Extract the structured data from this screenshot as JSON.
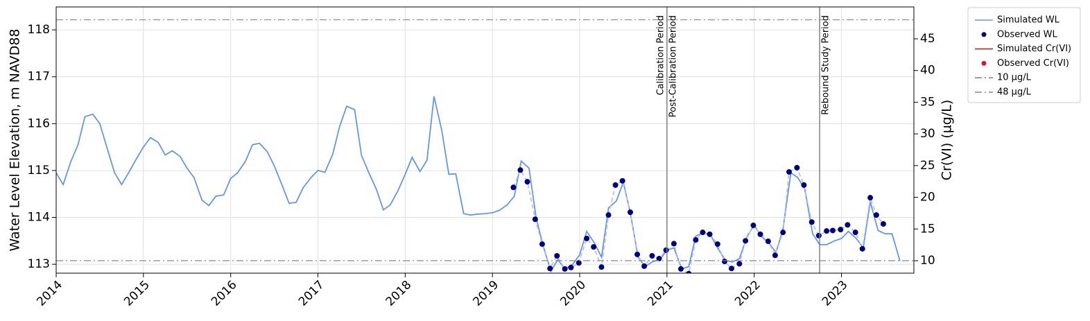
{
  "chart_data": {
    "type": "line",
    "ylabel": "Water Level Elevation, m NAVD88",
    "y2label": "Cr(VI) (µg/L)",
    "xlim": [
      2014,
      2023.83
    ],
    "xticks": [
      2014,
      2015,
      2016,
      2017,
      2018,
      2019,
      2020,
      2021,
      2022,
      2023
    ],
    "ylim": [
      112.81,
      118.49
    ],
    "yticks": [
      113,
      114,
      115,
      116,
      117,
      118
    ],
    "y2lim": [
      8.03,
      50.03
    ],
    "y2ticks": [
      10,
      15,
      20,
      25,
      30,
      35,
      40,
      45
    ],
    "grid": true,
    "legend": "outside-upper-right",
    "series": [
      {
        "name": "Simulated WL",
        "kind": "line",
        "color": "#6495ed",
        "x": [
          2014.0,
          2014.08,
          2014.17,
          2014.25,
          2014.33,
          2014.42,
          2014.5,
          2014.58,
          2014.67,
          2014.75,
          2014.83,
          2014.92,
          2015.0,
          2015.08,
          2015.17,
          2015.25,
          2015.33,
          2015.42,
          2015.5,
          2015.58,
          2015.67,
          2015.75,
          2015.83,
          2015.92,
          2016.0,
          2016.08,
          2016.17,
          2016.25,
          2016.33,
          2016.42,
          2016.5,
          2016.58,
          2016.67,
          2016.75,
          2016.83,
          2016.92,
          2017.0,
          2017.08,
          2017.17,
          2017.25,
          2017.33,
          2017.42,
          2017.5,
          2017.58,
          2017.67,
          2017.75,
          2017.83,
          2017.92,
          2018.0,
          2018.08,
          2018.17,
          2018.25,
          2018.33,
          2018.42,
          2018.5,
          2018.58,
          2018.67,
          2018.75,
          2018.83,
          2018.92,
          2019.0,
          2019.08,
          2019.17,
          2019.25,
          2019.33,
          2019.42,
          2019.5,
          2019.58,
          2019.67,
          2019.75,
          2019.83,
          2019.92,
          2020.0,
          2020.08,
          2020.17,
          2020.25,
          2020.33,
          2020.42,
          2020.5,
          2020.58,
          2020.67,
          2020.75,
          2020.83,
          2020.92,
          2021.0,
          2021.08,
          2021.17,
          2021.25,
          2021.33,
          2021.42,
          2021.5,
          2021.58,
          2021.67,
          2021.75,
          2021.83,
          2021.92,
          2022.0,
          2022.08,
          2022.17,
          2022.25,
          2022.33,
          2022.42,
          2022.5,
          2022.58,
          2022.67,
          2022.75,
          2022.83,
          2022.92,
          2023.0,
          2023.08,
          2023.17,
          2023.25,
          2023.33,
          2023.42,
          2023.5,
          2023.58,
          2023.67
        ],
        "values": [
          114.95,
          114.7,
          115.2,
          115.55,
          116.15,
          116.2,
          116.0,
          115.5,
          114.95,
          114.7,
          114.95,
          115.25,
          115.5,
          115.7,
          115.6,
          115.33,
          115.42,
          115.3,
          115.05,
          114.85,
          114.37,
          114.25,
          114.45,
          114.48,
          114.83,
          114.95,
          115.2,
          115.55,
          115.58,
          115.4,
          115.1,
          114.73,
          114.3,
          114.32,
          114.63,
          114.85,
          115.0,
          114.96,
          115.35,
          115.95,
          116.37,
          116.3,
          115.32,
          114.97,
          114.6,
          114.16,
          114.27,
          114.58,
          114.92,
          115.28,
          114.98,
          115.22,
          116.58,
          115.85,
          114.92,
          114.93,
          114.08,
          114.05,
          114.07,
          114.08,
          114.1,
          114.15,
          114.27,
          114.45,
          115.2,
          115.05,
          114.0,
          113.4,
          112.85,
          113.1,
          112.9,
          113.0,
          113.2,
          113.7,
          113.45,
          113.15,
          114.2,
          114.35,
          114.75,
          114.1,
          113.15,
          112.95,
          113.05,
          113.1,
          113.3,
          113.35,
          112.9,
          112.95,
          113.6,
          113.68,
          113.62,
          113.35,
          113.08,
          113.05,
          113.12,
          113.6,
          113.83,
          113.6,
          113.45,
          113.25,
          113.75,
          114.95,
          114.85,
          114.6,
          113.65,
          113.42,
          113.42,
          113.5,
          113.55,
          113.7,
          113.55,
          113.35,
          114.33,
          113.72,
          113.65,
          113.65,
          113.07
        ]
      },
      {
        "name": "Observed WL",
        "kind": "scatter",
        "color": "#000080",
        "connect_color": "#b8bfe8",
        "x": [
          2019.24,
          2019.32,
          2019.4,
          2019.49,
          2019.57,
          2019.66,
          2019.74,
          2019.83,
          2019.9,
          2019.99,
          2020.08,
          2020.16,
          2020.25,
          2020.33,
          2020.41,
          2020.49,
          2020.58,
          2020.66,
          2020.74,
          2020.83,
          2020.91,
          2020.99,
          2021.08,
          2021.16,
          2021.25,
          2021.33,
          2021.41,
          2021.49,
          2021.58,
          2021.66,
          2021.74,
          2021.83,
          2021.9,
          2021.99,
          2022.07,
          2022.16,
          2022.24,
          2022.33,
          2022.4,
          2022.49,
          2022.57,
          2022.66,
          2022.74,
          2022.83,
          2022.9,
          2022.99,
          2023.07,
          2023.16,
          2023.24,
          2023.33,
          2023.4,
          2023.48
        ],
        "values": [
          114.64,
          115.01,
          114.76,
          113.96,
          113.43,
          112.91,
          113.18,
          112.9,
          112.93,
          113.03,
          113.55,
          113.37,
          112.94,
          114.05,
          114.69,
          114.78,
          114.11,
          113.21,
          112.96,
          113.18,
          113.12,
          113.3,
          113.44,
          112.9,
          112.8,
          113.52,
          113.68,
          113.64,
          113.43,
          113.06,
          112.91,
          113.01,
          113.5,
          113.83,
          113.64,
          113.49,
          113.19,
          113.68,
          114.97,
          115.06,
          114.69,
          113.9,
          113.61,
          113.71,
          113.72,
          113.74,
          113.84,
          113.68,
          113.33,
          114.42,
          114.05,
          113.86
        ]
      },
      {
        "name": "Simulated Cr(VI)",
        "kind": "line",
        "color": "#b22222",
        "axis": "y2",
        "x": [],
        "values": []
      },
      {
        "name": "Observed Cr(VI)",
        "kind": "scatter",
        "color": "#dc143c",
        "axis": "y2",
        "x": [],
        "values": []
      },
      {
        "name": "10 µg/L",
        "kind": "hline",
        "color": "#888888",
        "axis": "y2",
        "value": 10
      },
      {
        "name": "48 µg/L",
        "kind": "hline",
        "color": "#888888",
        "axis": "y2",
        "value": 48
      }
    ],
    "vlines": [
      {
        "x": 2021.0
      },
      {
        "x": 2022.75
      }
    ],
    "annotations": [
      {
        "text": "Calibration Period",
        "x": 2021.0,
        "side": "left"
      },
      {
        "text": "Post-Calibration Period",
        "x": 2021.0,
        "side": "right"
      },
      {
        "text": "Rebound Study Period",
        "x": 2022.75,
        "side": "right"
      }
    ]
  }
}
